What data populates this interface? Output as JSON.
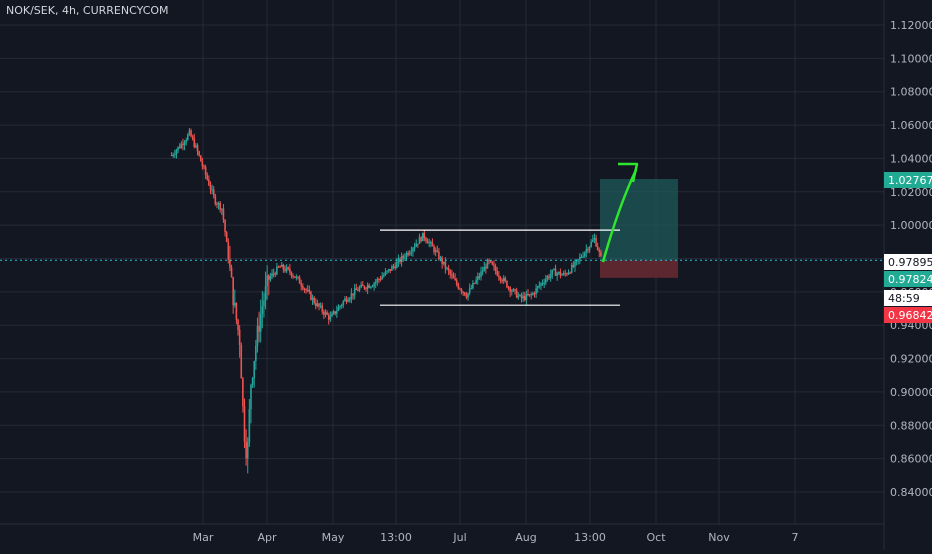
{
  "header": {
    "title": "NOK/SEK, 4h, CURRENCYCOM"
  },
  "colors": {
    "background": "#131722",
    "grid": "#252a36",
    "axis_text": "#b2b5be",
    "up_candle": "#26a69a",
    "down_candle": "#ef5350",
    "current_price_line": "#26c6da",
    "drawing": "#ffffff",
    "arrow": "#2ee62e",
    "target_zone": "#1e5a5a",
    "stop_zone": "#6b2a33"
  },
  "chart_data": {
    "type": "candlestick",
    "symbol": "NOK/SEK",
    "timeframe": "4h",
    "source": "CURRENCYCOM",
    "ylim": [
      0.83,
      1.125
    ],
    "y_ticks": [
      "1.12000",
      "1.10000",
      "1.08000",
      "1.06000",
      "1.04000",
      "1.02000",
      "1.00000",
      "0.98000",
      "0.96000",
      "0.94000",
      "0.92000",
      "0.90000",
      "0.88000",
      "0.86000",
      "0.84000"
    ],
    "x_ticks": [
      "Mar",
      "Apr",
      "May",
      "13:00",
      "Jul",
      "Aug",
      "13:00",
      "Oct",
      "Nov",
      "7"
    ],
    "price_path": [
      [
        0.6,
        1.042
      ],
      [
        0.85,
        1.048
      ],
      [
        1.1,
        1.055
      ],
      [
        1.3,
        1.045
      ],
      [
        1.55,
        1.03
      ],
      [
        1.8,
        1.015
      ],
      [
        2.0,
        1.01
      ],
      [
        2.15,
        0.985
      ],
      [
        2.35,
        0.95
      ],
      [
        2.5,
        0.93
      ],
      [
        2.6,
        0.88
      ],
      [
        2.7,
        0.86
      ],
      [
        2.8,
        0.905
      ],
      [
        2.95,
        0.93
      ],
      [
        3.1,
        0.95
      ],
      [
        3.3,
        0.968
      ],
      [
        3.6,
        0.975
      ],
      [
        3.9,
        0.972
      ],
      [
        4.2,
        0.965
      ],
      [
        4.6,
        0.953
      ],
      [
        5.0,
        0.944
      ],
      [
        5.4,
        0.955
      ],
      [
        5.8,
        0.962
      ],
      [
        6.2,
        0.965
      ],
      [
        6.6,
        0.972
      ],
      [
        7.0,
        0.98
      ],
      [
        7.3,
        0.987
      ],
      [
        7.6,
        0.994
      ],
      [
        7.9,
        0.985
      ],
      [
        8.2,
        0.975
      ],
      [
        8.5,
        0.965
      ],
      [
        8.8,
        0.958
      ],
      [
        9.1,
        0.968
      ],
      [
        9.4,
        0.978
      ],
      [
        9.7,
        0.97
      ],
      [
        10.0,
        0.962
      ],
      [
        10.3,
        0.956
      ],
      [
        10.6,
        0.958
      ],
      [
        10.9,
        0.966
      ],
      [
        11.2,
        0.972
      ],
      [
        11.5,
        0.97
      ],
      [
        11.8,
        0.976
      ],
      [
        12.1,
        0.985
      ],
      [
        12.35,
        0.992
      ],
      [
        12.55,
        0.978
      ]
    ],
    "price_markers": [
      {
        "label": "1.02767",
        "value": 1.02767,
        "color": "#22ab94"
      },
      {
        "label": "0.97895",
        "value": 0.97895,
        "color": "#ffffff"
      },
      {
        "label": "0.97824",
        "value": 0.97824,
        "color": "#22ab94"
      },
      {
        "label": "48:59",
        "value": 0.9695,
        "color": "#ffffff"
      },
      {
        "label": "0.96842",
        "value": 0.96842,
        "color": "#f23645"
      }
    ],
    "channel": {
      "upper": 0.997,
      "lower": 0.952
    },
    "trade_zone": {
      "entry": 0.97895,
      "target": 1.02767,
      "stop": 0.96842
    },
    "grid": true
  }
}
